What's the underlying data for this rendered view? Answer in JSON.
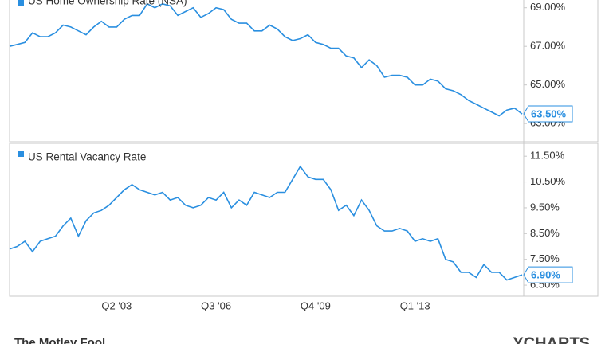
{
  "chart_data": [
    {
      "type": "line",
      "series": [
        {
          "name": "US Home Ownership Rate (NSA)",
          "color": "#2a8fe0",
          "values": [
            67.0,
            67.1,
            67.2,
            67.7,
            67.5,
            67.5,
            67.7,
            68.1,
            68.0,
            67.8,
            67.6,
            68.0,
            68.3,
            68.0,
            68.0,
            68.4,
            68.6,
            68.6,
            69.2,
            69.0,
            69.2,
            69.1,
            68.6,
            68.8,
            69.0,
            68.5,
            68.7,
            69.0,
            68.9,
            68.4,
            68.2,
            68.2,
            67.8,
            67.8,
            68.1,
            67.9,
            67.5,
            67.3,
            67.4,
            67.6,
            67.2,
            67.1,
            66.9,
            66.9,
            66.5,
            66.4,
            65.9,
            66.3,
            66.0,
            65.4,
            65.5,
            65.5,
            65.4,
            65.0,
            65.0,
            65.3,
            65.2,
            64.8,
            64.7,
            64.5,
            64.2,
            64.0,
            63.8,
            63.6,
            63.4,
            63.7,
            63.8,
            63.5
          ],
          "last_value_label": "63.50%"
        }
      ],
      "ylim": [
        62.1,
        69.4
      ],
      "yticks": [
        {
          "value": 63,
          "label": "63.00%"
        },
        {
          "value": 65,
          "label": "65.00%"
        },
        {
          "value": 67,
          "label": "67.00%"
        },
        {
          "value": 69,
          "label": "69.00%"
        }
      ]
    },
    {
      "type": "line",
      "categories": [
        null,
        null,
        null,
        null,
        null,
        null,
        null,
        null,
        null,
        null,
        null,
        null,
        null,
        null,
        "Q2 '03",
        null,
        null,
        null,
        null,
        null,
        null,
        null,
        null,
        null,
        null,
        null,
        null,
        "Q3 '06",
        null,
        null,
        null,
        null,
        null,
        null,
        null,
        null,
        null,
        null,
        null,
        null,
        "Q4 '09",
        null,
        null,
        null,
        null,
        null,
        null,
        null,
        null,
        null,
        null,
        null,
        null,
        "Q1 '13",
        null,
        null,
        null,
        null,
        null,
        null,
        null,
        null,
        null,
        null,
        null,
        null,
        null,
        null
      ],
      "series": [
        {
          "name": "US Rental Vacancy Rate",
          "color": "#2a8fe0",
          "values": [
            7.9,
            8.0,
            8.2,
            7.8,
            8.2,
            8.3,
            8.4,
            8.8,
            9.1,
            8.4,
            9.0,
            9.3,
            9.4,
            9.6,
            9.9,
            10.2,
            10.4,
            10.2,
            10.1,
            10.0,
            10.1,
            9.8,
            9.9,
            9.6,
            9.5,
            9.6,
            9.9,
            9.8,
            10.1,
            9.5,
            9.8,
            9.6,
            10.1,
            10.0,
            9.9,
            10.1,
            10.1,
            10.6,
            11.1,
            10.7,
            10.6,
            10.6,
            10.2,
            9.4,
            9.6,
            9.2,
            9.8,
            9.4,
            8.8,
            8.6,
            8.6,
            8.7,
            8.6,
            8.2,
            8.3,
            8.2,
            8.3,
            7.5,
            7.4,
            7.0,
            7.0,
            6.8,
            7.3,
            7.0,
            7.0,
            6.7,
            6.8,
            6.9
          ],
          "last_value_label": "6.90%"
        }
      ],
      "ylim": [
        6.07,
        12.0
      ],
      "yticks": [
        {
          "value": 6.5,
          "label": "6.50%"
        },
        {
          "value": 7.5,
          "label": "7.50%"
        },
        {
          "value": 8.5,
          "label": "8.50%"
        },
        {
          "value": 9.5,
          "label": "9.50%"
        },
        {
          "value": 10.5,
          "label": "10.50%"
        },
        {
          "value": 11.5,
          "label": "11.50%"
        }
      ]
    }
  ],
  "footer": {
    "left": "The Motley Fool",
    "right": "YCHARTS"
  }
}
